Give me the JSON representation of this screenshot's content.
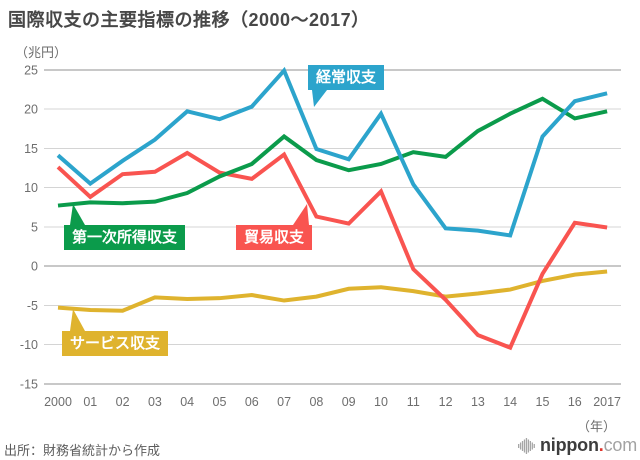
{
  "title": "国際収支の主要指標の推移（2000〜2017）",
  "y_axis": {
    "unit": "（兆円）",
    "ticks": [
      25,
      20,
      15,
      10,
      5,
      0,
      -5,
      -10,
      -15
    ]
  },
  "x_axis": {
    "labels": [
      "2000",
      "01",
      "02",
      "03",
      "04",
      "05",
      "06",
      "07",
      "08",
      "09",
      "10",
      "11",
      "12",
      "13",
      "14",
      "15",
      "16",
      "2017"
    ],
    "suffix": "（年）"
  },
  "source": "出所：財務省統計から作成",
  "logo": {
    "name": "nippon",
    "dot": ".",
    "tld": "com"
  },
  "colors": {
    "current_account": "#2CA4CC",
    "primary_income": "#0B9B4B",
    "trade": "#F95450",
    "services": "#DFB32E",
    "grid": "#d4d4d4",
    "grid_dark": "#909090",
    "axis_text": "#6e6e6e"
  },
  "chart_data": {
    "type": "line",
    "title": "国際収支の主要指標の推移（2000〜2017）",
    "xlabel": "年",
    "ylabel": "兆円",
    "ylim": [
      -15,
      25
    ],
    "ytick_interval": 5,
    "grid": true,
    "legend_position": "inline-callouts",
    "categories": [
      2000,
      2001,
      2002,
      2003,
      2004,
      2005,
      2006,
      2007,
      2008,
      2009,
      2010,
      2011,
      2012,
      2013,
      2014,
      2015,
      2016,
      2017
    ],
    "series": [
      {
        "name": "経常収支",
        "color": "#2CA4CC",
        "values": [
          14.1,
          10.5,
          13.4,
          16.1,
          19.7,
          18.7,
          20.3,
          24.9,
          14.9,
          13.6,
          19.4,
          10.4,
          4.8,
          4.5,
          3.9,
          16.5,
          21.0,
          22.0
        ]
      },
      {
        "name": "第一次所得収支",
        "color": "#0B9B4B",
        "values": [
          7.7,
          8.1,
          8.0,
          8.2,
          9.3,
          11.4,
          13.0,
          16.5,
          13.5,
          12.2,
          13.0,
          14.5,
          13.9,
          17.2,
          19.4,
          21.3,
          18.8,
          19.7
        ]
      },
      {
        "name": "貿易収支",
        "color": "#F95450",
        "values": [
          12.6,
          8.8,
          11.7,
          12.0,
          14.4,
          11.9,
          11.1,
          14.2,
          6.3,
          5.4,
          9.5,
          -0.4,
          -4.3,
          -8.8,
          -10.4,
          -1.0,
          5.5,
          4.9
        ]
      },
      {
        "name": "サービス収支",
        "color": "#DFB32E",
        "values": [
          -5.3,
          -5.6,
          -5.7,
          -4.0,
          -4.2,
          -4.1,
          -3.7,
          -4.4,
          -3.9,
          -2.9,
          -2.7,
          -3.2,
          -3.9,
          -3.5,
          -3.0,
          -1.9,
          -1.1,
          -0.7
        ]
      }
    ]
  }
}
